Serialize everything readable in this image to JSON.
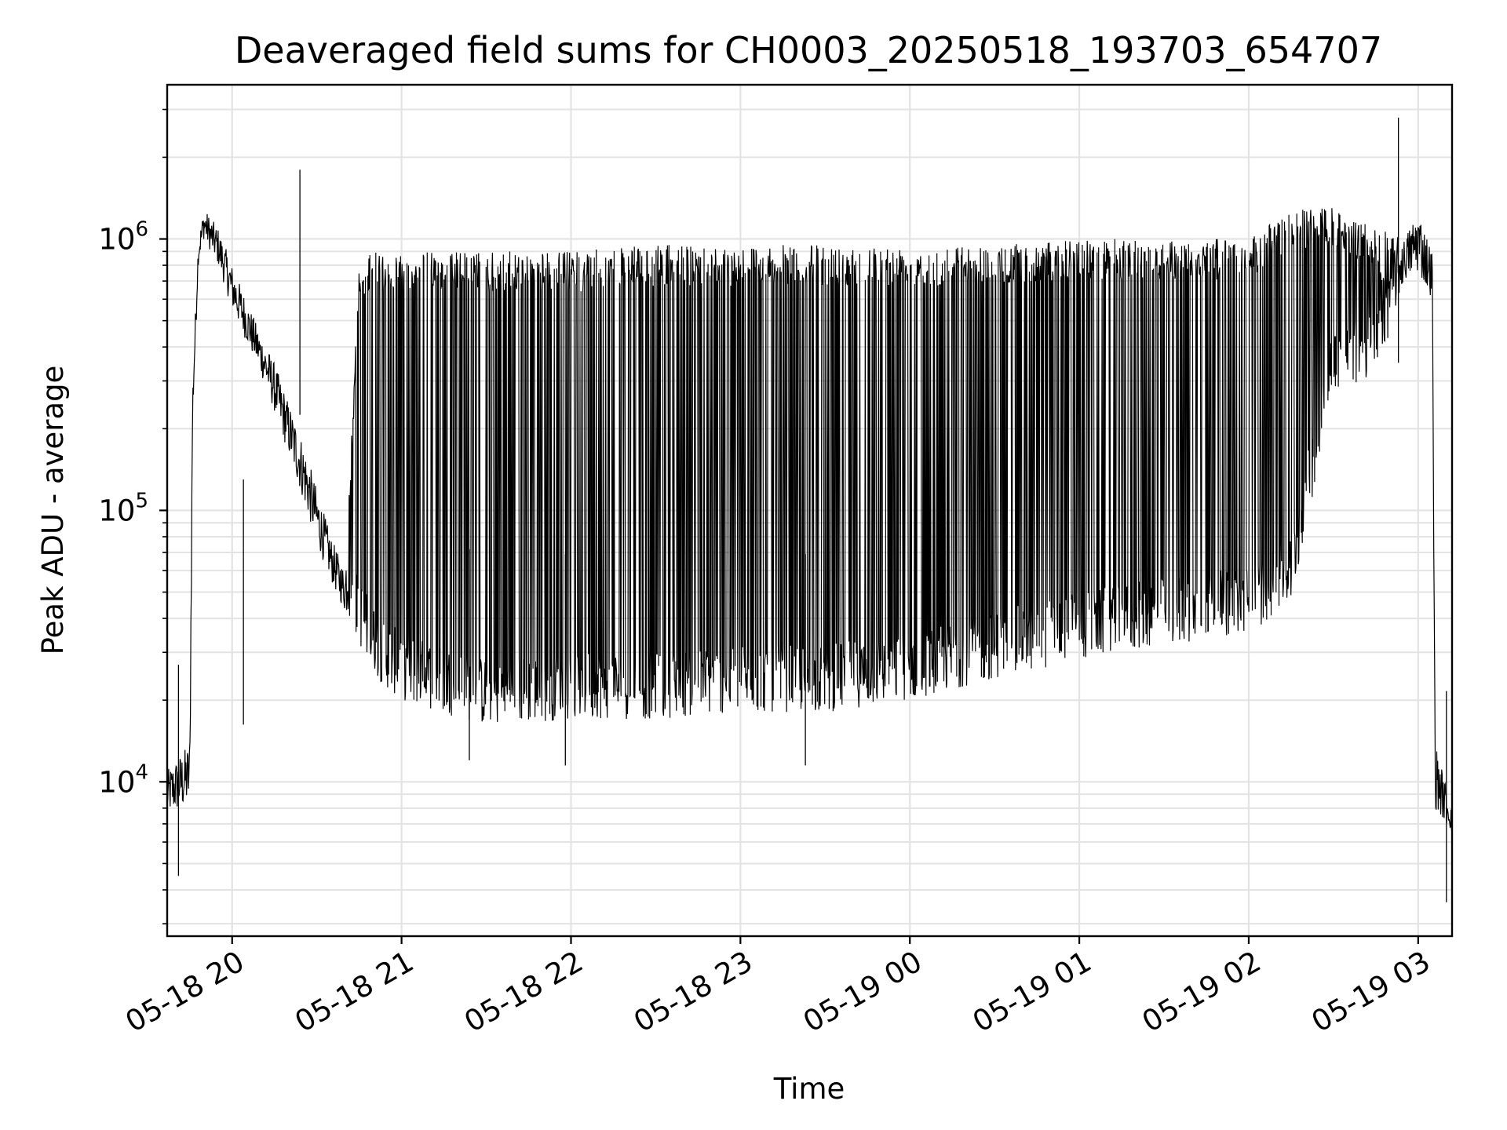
{
  "chart_data": {
    "type": "line",
    "title": "Deaveraged field sums for CH0003_20250518_193703_654707",
    "xlabel": "Time",
    "ylabel": "Peak ADU - average",
    "y_scale": "log",
    "ylim": [
      2700,
      3700000
    ],
    "xlim": [
      "2025-05-18 19:37",
      "2025-05-19 03:12"
    ],
    "x_ticks": [
      "05-18 20",
      "05-18 21",
      "05-18 22",
      "05-18 23",
      "05-19 00",
      "05-19 01",
      "05-19 02",
      "05-19 03"
    ],
    "x_tick_times": [
      "2025-05-18 20:00",
      "2025-05-18 21:00",
      "2025-05-18 22:00",
      "2025-05-18 23:00",
      "2025-05-19 00:00",
      "2025-05-19 01:00",
      "2025-05-19 02:00",
      "2025-05-19 03:00"
    ],
    "y_ticks": [
      {
        "base": "10",
        "exp": "4",
        "value": 10000
      },
      {
        "base": "10",
        "exp": "5",
        "value": 100000
      },
      {
        "base": "10",
        "exp": "6",
        "value": 1000000
      }
    ],
    "grid": true,
    "series": [
      {
        "color": "#000000",
        "upper_envelope": {
          "x": [
            "2025-05-18 19:37",
            "2025-05-18 19:45",
            "2025-05-18 19:46",
            "2025-05-18 19:48",
            "2025-05-18 19:50",
            "2025-05-18 19:55",
            "2025-05-18 20:00",
            "2025-05-18 20:05",
            "2025-05-18 20:10",
            "2025-05-18 20:15",
            "2025-05-18 20:20",
            "2025-05-18 20:25",
            "2025-05-18 20:30",
            "2025-05-18 20:35",
            "2025-05-18 20:40",
            "2025-05-18 20:45",
            "2025-05-18 20:50",
            "2025-05-18 20:55",
            "2025-05-18 21:00",
            "2025-05-18 21:30",
            "2025-05-18 22:00",
            "2025-05-18 22:30",
            "2025-05-18 23:00",
            "2025-05-18 23:30",
            "2025-05-19 00:00",
            "2025-05-19 00:30",
            "2025-05-19 01:00",
            "2025-05-19 01:30",
            "2025-05-19 02:00",
            "2025-05-19 02:15",
            "2025-05-19 02:30",
            "2025-05-19 02:45",
            "2025-05-19 02:55",
            "2025-05-19 03:00",
            "2025-05-19 03:05",
            "2025-05-19 03:06",
            "2025-05-19 03:12"
          ],
          "y": [
            11000,
            14000,
            300000,
            1000000,
            1300000,
            1100000,
            800000,
            600000,
            450000,
            350000,
            250000,
            180000,
            120000,
            80000,
            60000,
            800000,
            900000,
            900000,
            900000,
            900000,
            900000,
            950000,
            950000,
            950000,
            950000,
            950000,
            1000000,
            1000000,
            1000000,
            1300000,
            1300000,
            1100000,
            1000000,
            1300000,
            900000,
            14000,
            8000
          ]
        },
        "lower_envelope": {
          "x": [
            "2025-05-18 19:37",
            "2025-05-18 19:45",
            "2025-05-18 19:46",
            "2025-05-18 19:48",
            "2025-05-18 19:50",
            "2025-05-18 19:55",
            "2025-05-18 20:00",
            "2025-05-18 20:05",
            "2025-05-18 20:10",
            "2025-05-18 20:15",
            "2025-05-18 20:20",
            "2025-05-18 20:25",
            "2025-05-18 20:30",
            "2025-05-18 20:35",
            "2025-05-18 20:40",
            "2025-05-18 20:45",
            "2025-05-18 20:50",
            "2025-05-18 20:55",
            "2025-05-18 21:00",
            "2025-05-18 21:30",
            "2025-05-18 22:00",
            "2025-05-18 22:30",
            "2025-05-18 23:00",
            "2025-05-18 23:30",
            "2025-05-19 00:00",
            "2025-05-19 00:30",
            "2025-05-19 01:00",
            "2025-05-19 01:30",
            "2025-05-19 02:00",
            "2025-05-19 02:15",
            "2025-05-19 02:30",
            "2025-05-19 02:45",
            "2025-05-19 02:55",
            "2025-05-19 03:00",
            "2025-05-19 03:05",
            "2025-05-19 03:06",
            "2025-05-19 03:12"
          ],
          "y": [
            7500,
            8000,
            200000,
            800000,
            1000000,
            800000,
            550000,
            420000,
            320000,
            230000,
            160000,
            110000,
            75000,
            55000,
            42000,
            32000,
            25000,
            22000,
            20000,
            16000,
            17000,
            17000,
            18000,
            18000,
            20000,
            24000,
            28000,
            32000,
            35000,
            45000,
            280000,
            300000,
            700000,
            750000,
            600000,
            8000,
            6500
          ]
        },
        "annotated_extremes": [
          {
            "x": "2025-05-18 19:41",
            "y": 4500
          },
          {
            "x": "2025-05-18 20:04",
            "y": 130000
          },
          {
            "x": "2025-05-18 20:24",
            "y": 1800000
          },
          {
            "x": "2025-05-18 21:24",
            "y": 12000
          },
          {
            "x": "2025-05-18 21:58",
            "y": 11500
          },
          {
            "x": "2025-05-18 23:23",
            "y": 11500
          },
          {
            "x": "2025-05-19 02:53",
            "y": 2800000
          },
          {
            "x": "2025-05-19 03:10",
            "y": 3600
          }
        ]
      }
    ]
  }
}
